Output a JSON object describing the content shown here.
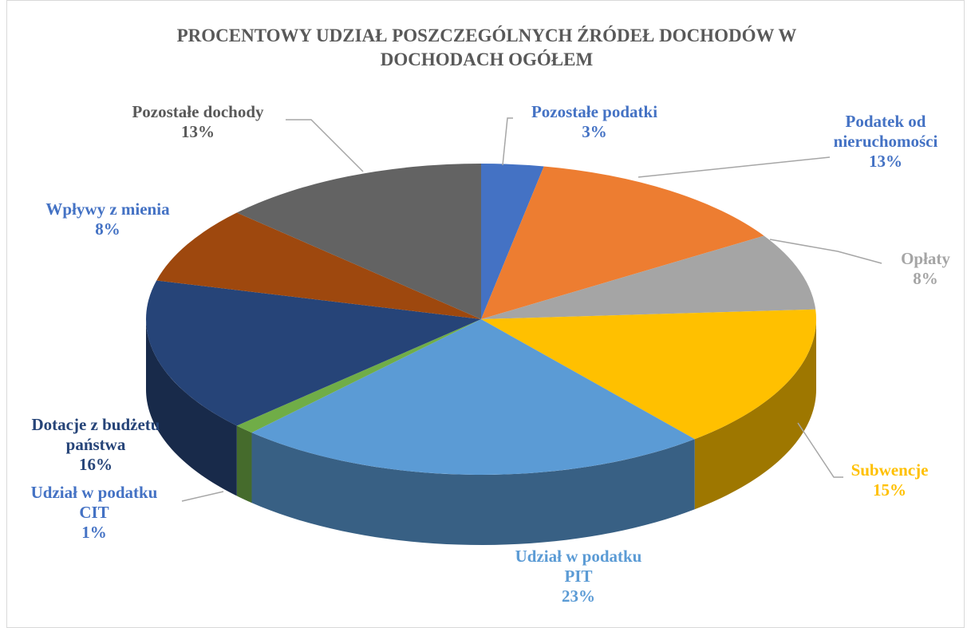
{
  "chart_data": {
    "type": "pie",
    "title": "PROCENTOWY UDZIAŁ POSZCZEGÓLNYCH ŹRÓDEŁ DOCHODÓW W DOCHODACH OGÓŁEM",
    "categories": [
      "Pozostałe podatki",
      "Podatek od nieruchomości",
      "Opłaty",
      "Subwencje",
      "Udział w podatku PIT",
      "Udział w podatku CIT",
      "Dotacje z budżetu państwa",
      "Wpływy z mienia",
      "Pozostałe dochody"
    ],
    "values": [
      3,
      13,
      8,
      15,
      23,
      1,
      16,
      8,
      13
    ],
    "value_labels": [
      "3%",
      "13%",
      "8%",
      "15%",
      "23%",
      "1%",
      "16%",
      "8%",
      "13%"
    ],
    "colors": [
      "#4472c4",
      "#ed7d31",
      "#a5a5a5",
      "#ffc000",
      "#5b9bd5",
      "#70ad47",
      "#264478",
      "#9e480e",
      "#636363"
    ],
    "label_colors": [
      "#4472c4",
      "#4472c4",
      "#a5a5a5",
      "#ffc000",
      "#5b9bd5",
      "#4472c4",
      "#264478",
      "#4472c4",
      "#595959"
    ]
  }
}
